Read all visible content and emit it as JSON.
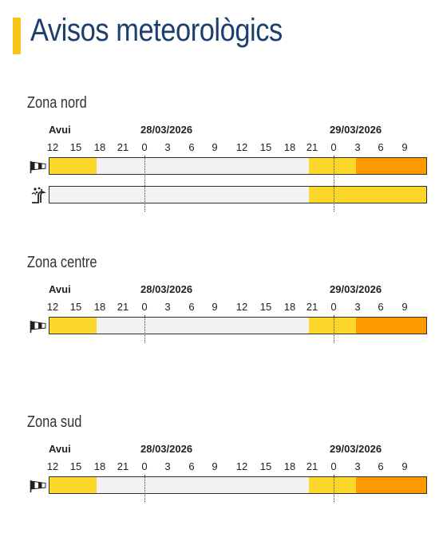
{
  "page": {
    "title": "Avisos meteorològics"
  },
  "colors": {
    "accent": "#f5c518",
    "title": "#1d3f6e",
    "yellow": "#fcd72a",
    "orange": "#fd9a00",
    "none": "#f2f2f2"
  },
  "timeline": {
    "days": [
      "Avui",
      "28/03/2026",
      "29/03/2026"
    ],
    "hours": [
      "12",
      "15",
      "18",
      "21",
      "0",
      "3",
      "6",
      "9",
      "12",
      "15",
      "18",
      "21",
      "0",
      "3",
      "6",
      "9"
    ]
  },
  "zones": [
    {
      "name": "Zona nord",
      "rows": [
        {
          "icon": "wind-sock-icon",
          "segments": [
            {
              "level": "yellow",
              "from": 0,
              "to": 6
            },
            {
              "level": "none",
              "from": 6,
              "to": 33
            },
            {
              "level": "yellow",
              "from": 33,
              "to": 39
            },
            {
              "level": "orange",
              "from": 39,
              "to": 48
            }
          ]
        },
        {
          "icon": "wave-impact-icon",
          "segments": [
            {
              "level": "none",
              "from": 0,
              "to": 33
            },
            {
              "level": "yellow",
              "from": 33,
              "to": 48
            }
          ]
        }
      ]
    },
    {
      "name": "Zona centre",
      "rows": [
        {
          "icon": "wind-sock-icon",
          "segments": [
            {
              "level": "yellow",
              "from": 0,
              "to": 6
            },
            {
              "level": "none",
              "from": 6,
              "to": 33
            },
            {
              "level": "yellow",
              "from": 33,
              "to": 39
            },
            {
              "level": "orange",
              "from": 39,
              "to": 48
            }
          ]
        }
      ]
    },
    {
      "name": "Zona sud",
      "rows": [
        {
          "icon": "wind-sock-icon",
          "segments": [
            {
              "level": "yellow",
              "from": 0,
              "to": 6
            },
            {
              "level": "none",
              "from": 6,
              "to": 33
            },
            {
              "level": "yellow",
              "from": 33,
              "to": 39
            },
            {
              "level": "orange",
              "from": 39,
              "to": 48
            }
          ]
        }
      ]
    }
  ]
}
